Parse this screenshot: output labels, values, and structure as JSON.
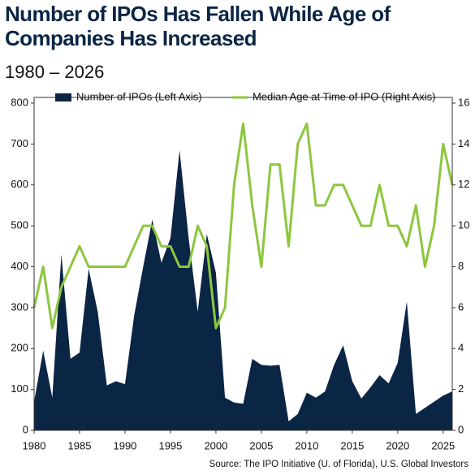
{
  "chart_data": {
    "type": "area",
    "title": "Number of IPOs Has Fallen While Age of Companies Has Increased",
    "subtitle": "1980 – 2026",
    "source": "Source: The IPO Initiative (U. of Florida), U.S. Global Investors",
    "x": [
      1980,
      1981,
      1982,
      1983,
      1984,
      1985,
      1986,
      1987,
      1988,
      1989,
      1990,
      1991,
      1992,
      1993,
      1994,
      1995,
      1996,
      1997,
      1998,
      1999,
      2000,
      2001,
      2002,
      2003,
      2004,
      2005,
      2006,
      2007,
      2008,
      2009,
      2010,
      2011,
      2012,
      2013,
      2014,
      2015,
      2016,
      2017,
      2018,
      2019,
      2020,
      2021,
      2022,
      2023,
      2024,
      2025,
      2026
    ],
    "xlim": [
      1980,
      2026
    ],
    "xticks": [
      1980,
      1985,
      1990,
      1995,
      2000,
      2005,
      2010,
      2015,
      2020,
      2025
    ],
    "ylim": [
      0,
      800
    ],
    "yticks": [
      0,
      100,
      200,
      300,
      400,
      500,
      600,
      700,
      800
    ],
    "y2lim": [
      0,
      16
    ],
    "y2ticks": [
      0,
      2,
      4,
      6,
      8,
      10,
      12,
      14,
      16
    ],
    "legend": "top",
    "series": [
      {
        "name": "Number of IPOs (Left Axis)",
        "type": "area",
        "color": "#0b2545",
        "values": [
          70,
          195,
          80,
          430,
          175,
          190,
          395,
          290,
          110,
          120,
          113,
          280,
          400,
          515,
          410,
          470,
          685,
          470,
          290,
          480,
          385,
          80,
          68,
          65,
          175,
          160,
          158,
          160,
          22,
          40,
          92,
          80,
          95,
          160,
          208,
          120,
          78,
          105,
          135,
          115,
          165,
          315,
          40,
          55,
          70,
          85,
          95
        ]
      },
      {
        "name": "Median Age at Time of IPO (Right Axis)",
        "type": "line",
        "color": "#8dc63f",
        "axis": "y2",
        "values": [
          6,
          8,
          5,
          7,
          8,
          9,
          8,
          8,
          8,
          8,
          8,
          9,
          10,
          10,
          9,
          9,
          8,
          8,
          10,
          9,
          5,
          6,
          12,
          15,
          11,
          8,
          13,
          13,
          9,
          14,
          15,
          11,
          11,
          12,
          12,
          11,
          10,
          10,
          12,
          10,
          10,
          9,
          11,
          8,
          10,
          14,
          12
        ]
      }
    ]
  }
}
